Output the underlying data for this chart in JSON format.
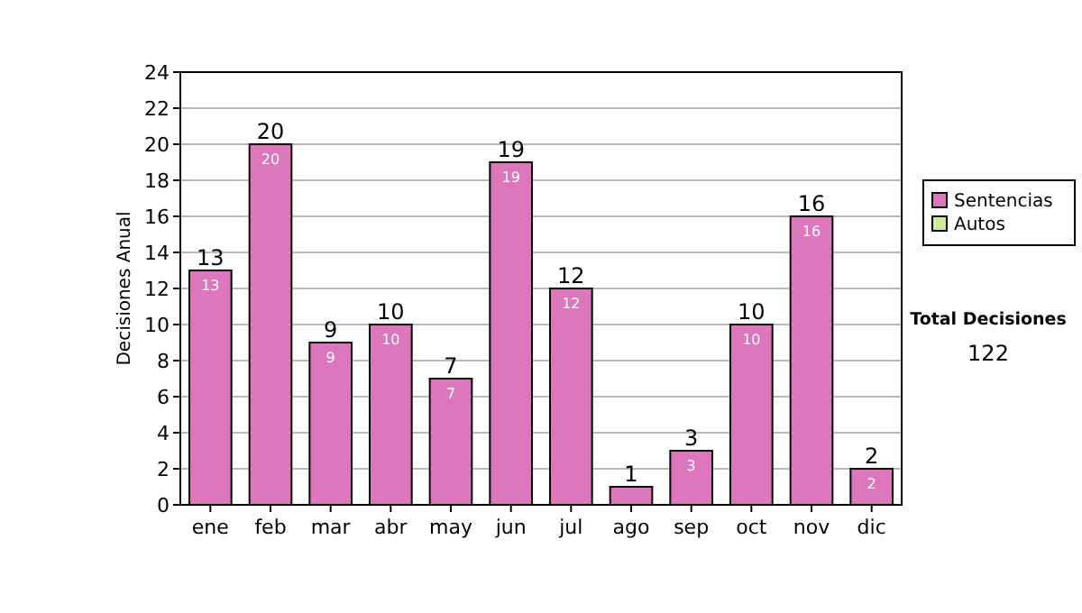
{
  "chart_data": {
    "type": "bar",
    "ylabel": "Decisiones Anual",
    "categories": [
      "ene",
      "feb",
      "mar",
      "abr",
      "may",
      "jun",
      "jul",
      "ago",
      "sep",
      "oct",
      "nov",
      "dic"
    ],
    "series": [
      {
        "name": "Sentencias",
        "color": "#dd77bb",
        "values": [
          13,
          20,
          9,
          10,
          7,
          19,
          12,
          1,
          3,
          10,
          16,
          2
        ],
        "value_labels": [
          "13",
          "20",
          "9",
          "10",
          "7",
          "19",
          "12",
          null,
          "3",
          "10",
          "16",
          "2"
        ]
      },
      {
        "name": "Autos",
        "color": "#ccee99",
        "values": [
          null,
          null,
          null,
          null,
          null,
          null,
          null,
          null,
          null,
          null,
          null,
          null
        ]
      }
    ],
    "stacked": true,
    "totals": [
      "13",
      "20",
      "9",
      "10",
      "7",
      "19",
      "12",
      "1",
      "3",
      "10",
      "16",
      "2"
    ],
    "ylim": [
      0,
      24
    ],
    "yticks": [
      0,
      2,
      4,
      6,
      8,
      10,
      12,
      14,
      16,
      18,
      20,
      22,
      24
    ],
    "grid": "y",
    "legend": "right",
    "annotations": [
      "Total Decisiones",
      "122"
    ]
  }
}
